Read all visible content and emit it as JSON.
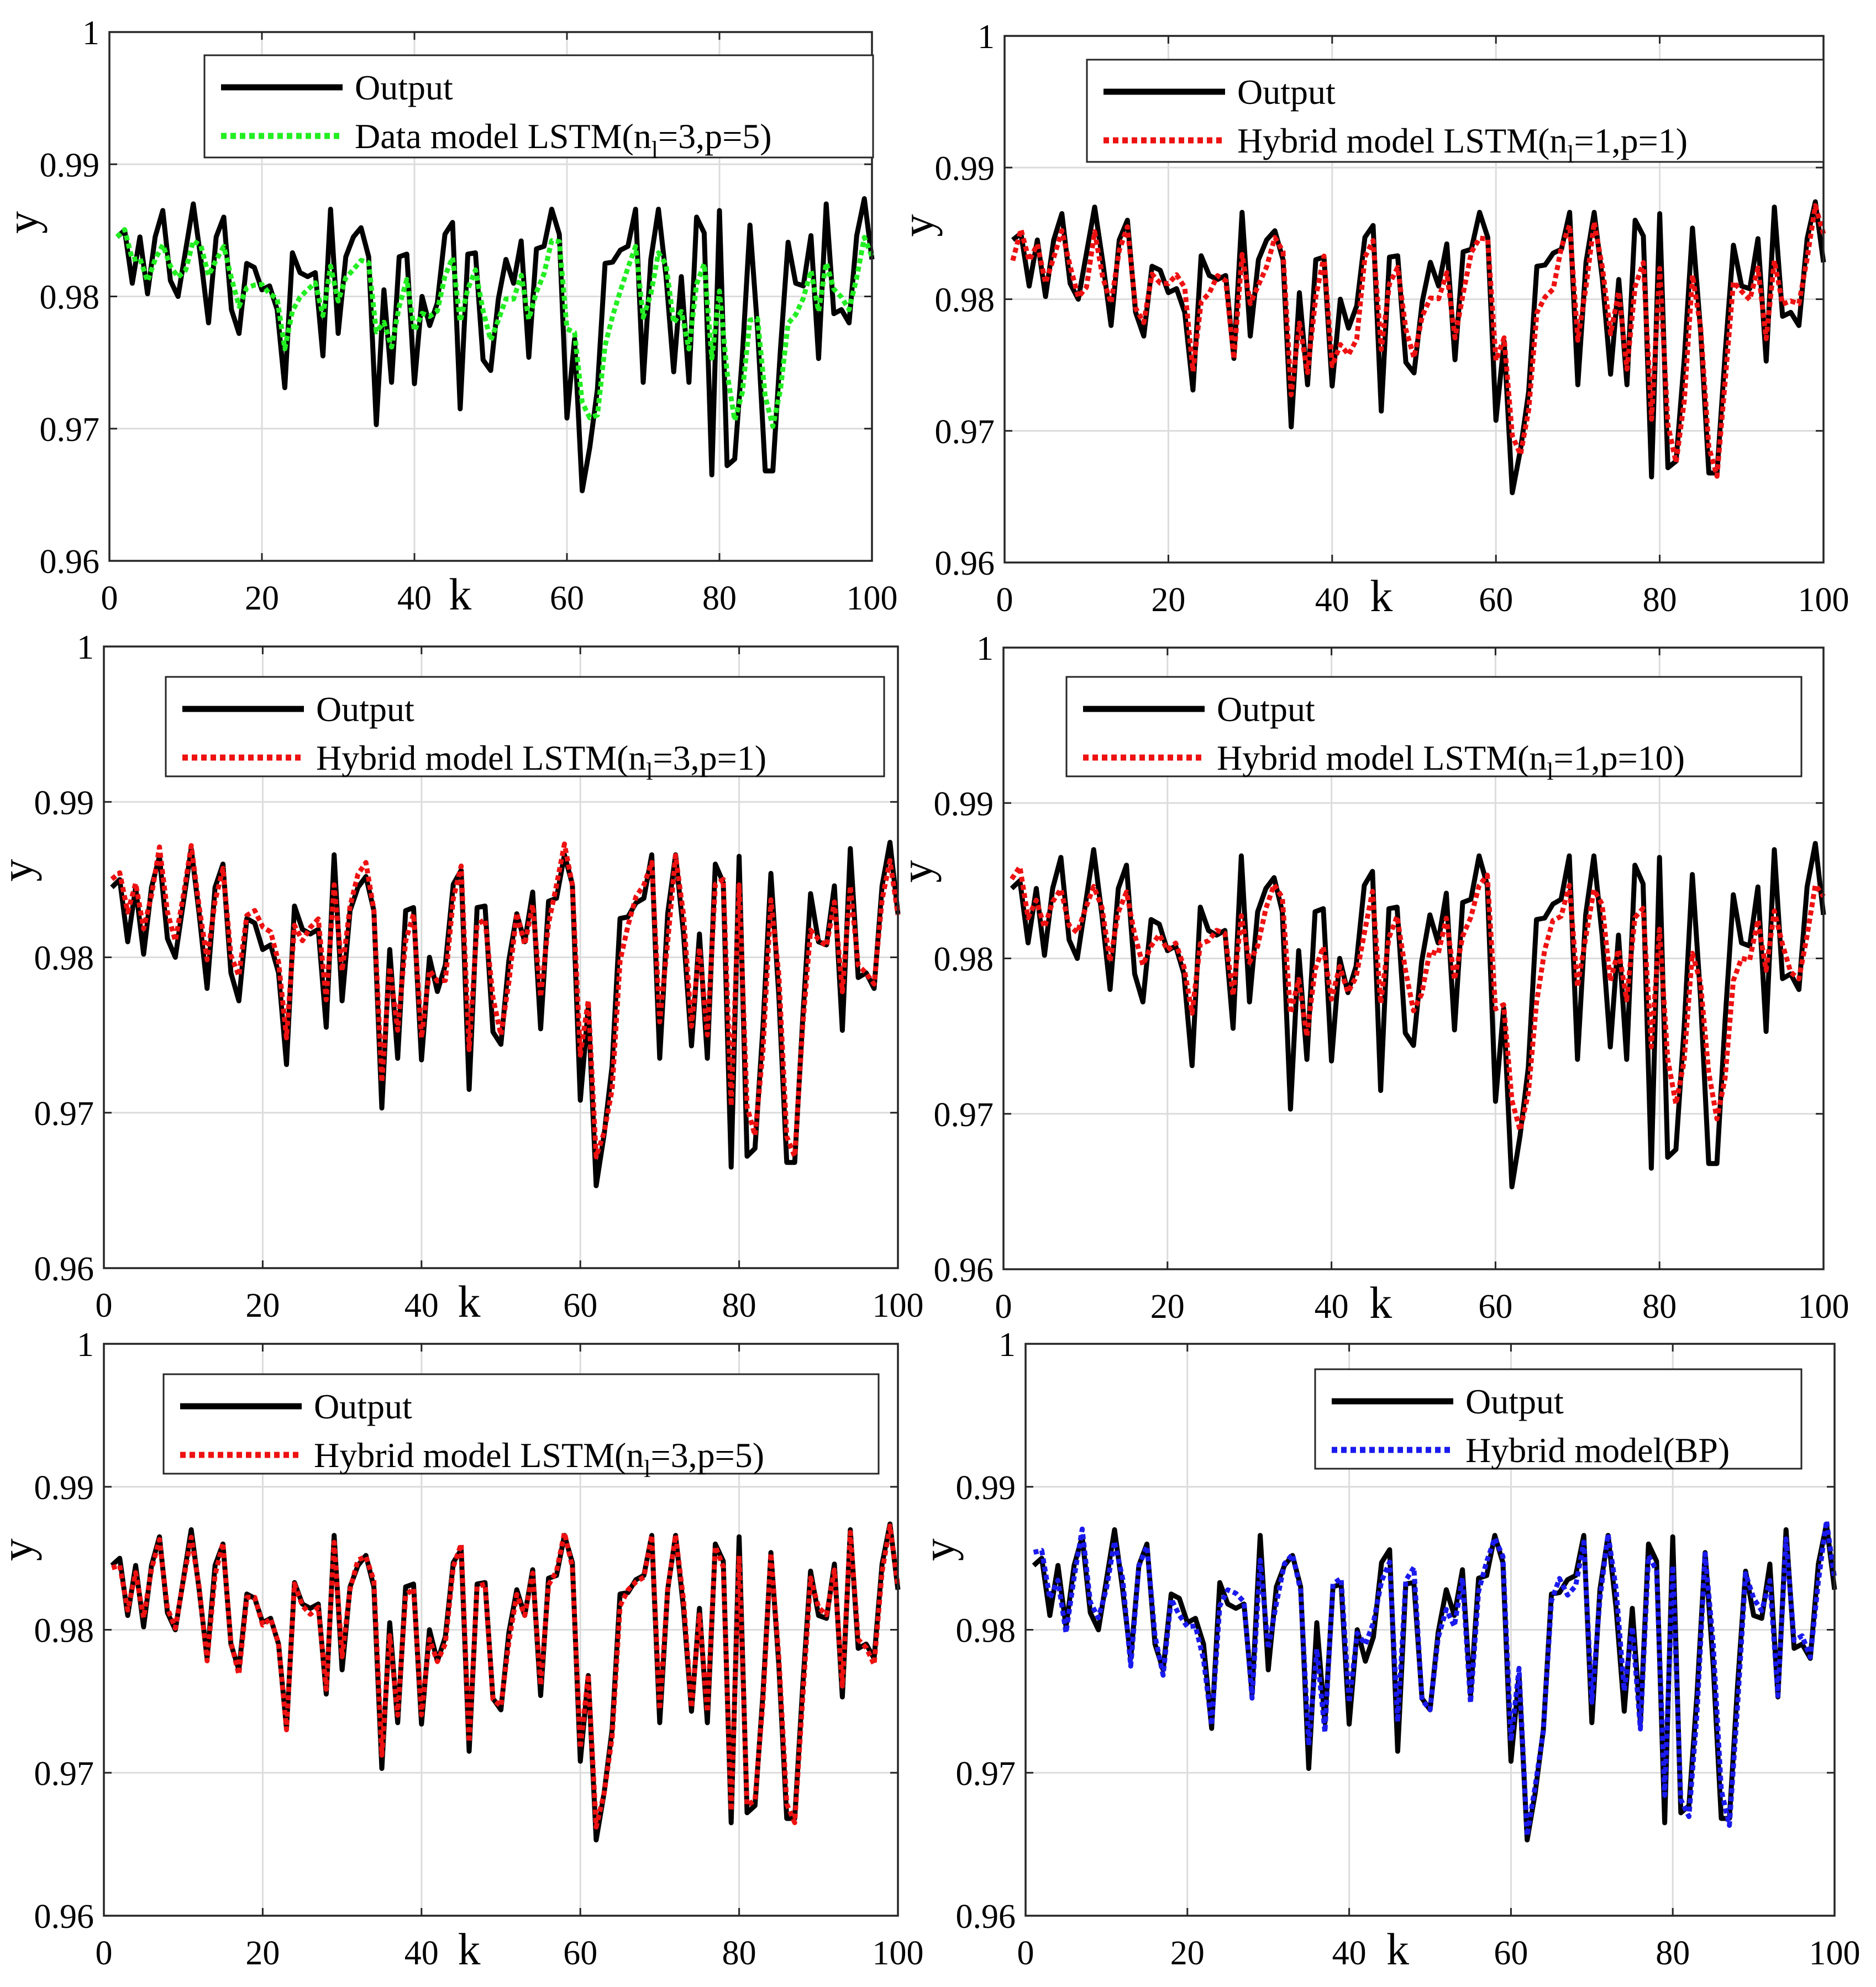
{
  "figure": {
    "series_colors": {
      "output": "#000000",
      "green": "#22ee22",
      "red": "#ee1111",
      "blue": "#1a1aee"
    },
    "grid_color": "#dcdcdc"
  },
  "chart_data": [
    {
      "type": "line",
      "xlabel": "k",
      "ylabel": "y",
      "xlim": [
        0,
        100
      ],
      "ylim": [
        0.96,
        1
      ],
      "xticks": [
        "0",
        "20",
        "40",
        "60",
        "80",
        "100"
      ],
      "yticks": [
        "0.96",
        "0.97",
        "0.98",
        "0.99",
        "1"
      ],
      "grid": true,
      "legend_location": "top-right",
      "series": [
        {
          "name": "Output",
          "color": "#000000",
          "style": "solid",
          "legend_label": "Output",
          "values_ref": "output"
        },
        {
          "name": "Data model LSTM(n_l=3,p=5)",
          "color": "#22ee22",
          "style": "dotted",
          "legend_label": "Data model LSTM(n",
          "legend_sub": "l",
          "legend_tail": "=3,p=5)",
          "noise_seed": 11,
          "noise_scale": 0.0014,
          "smooth": 0.55,
          "shift": -0.0004
        }
      ]
    },
    {
      "type": "line",
      "xlabel": "k",
      "ylabel": "y",
      "xlim": [
        0,
        100
      ],
      "ylim": [
        0.96,
        1
      ],
      "xticks": [
        "0",
        "20",
        "40",
        "60",
        "80",
        "100"
      ],
      "yticks": [
        "0.96",
        "0.97",
        "0.98",
        "0.99",
        "1"
      ],
      "grid": true,
      "legend_location": "top-right",
      "series": [
        {
          "name": "Output",
          "color": "#000000",
          "style": "solid",
          "legend_label": "Output",
          "values_ref": "output"
        },
        {
          "name": "Hybrid model LSTM(n_l=1,p=1)",
          "color": "#ee1111",
          "style": "dotted",
          "legend_label": "Hybrid model LSTM(n",
          "legend_sub": "l",
          "legend_tail": "=1,p=1)",
          "noise_seed": 23,
          "noise_scale": 0.0022,
          "smooth": 0.3,
          "shift": -0.0006
        }
      ]
    },
    {
      "type": "line",
      "xlabel": "k",
      "ylabel": "y",
      "xlim": [
        0,
        100
      ],
      "ylim": [
        0.96,
        1
      ],
      "xticks": [
        "0",
        "20",
        "40",
        "60",
        "80",
        "100"
      ],
      "yticks": [
        "0.96",
        "0.97",
        "0.98",
        "0.99",
        "1"
      ],
      "grid": true,
      "legend_location": "top-right",
      "series": [
        {
          "name": "Output",
          "color": "#000000",
          "style": "solid",
          "legend_label": "Output",
          "values_ref": "output"
        },
        {
          "name": "Hybrid model LSTM(n_l=3,p=1)",
          "color": "#ee1111",
          "style": "dotted",
          "legend_label": "Hybrid model LSTM(n",
          "legend_sub": "l",
          "legend_tail": "=3,p=1)",
          "noise_seed": 37,
          "noise_scale": 0.0012,
          "smooth": 0.18,
          "shift": 0.0002
        }
      ]
    },
    {
      "type": "line",
      "xlabel": "k",
      "ylabel": "y",
      "xlim": [
        0,
        100
      ],
      "ylim": [
        0.96,
        1
      ],
      "xticks": [
        "0",
        "20",
        "40",
        "60",
        "80",
        "100"
      ],
      "yticks": [
        "0.96",
        "0.97",
        "0.98",
        "0.99",
        "1"
      ],
      "grid": true,
      "legend_location": "top-right",
      "series": [
        {
          "name": "Output",
          "color": "#000000",
          "style": "solid",
          "legend_label": "Output",
          "values_ref": "output"
        },
        {
          "name": "Hybrid model LSTM(n_l=1,p=10)",
          "color": "#ee1111",
          "style": "dotted",
          "legend_label": "Hybrid model LSTM(n",
          "legend_sub": "l",
          "legend_tail": "=1,p=10)",
          "noise_seed": 41,
          "noise_scale": 0.0016,
          "smooth": 0.45,
          "shift": 0.0
        }
      ]
    },
    {
      "type": "line",
      "xlabel": "k",
      "ylabel": "y",
      "xlim": [
        0,
        100
      ],
      "ylim": [
        0.96,
        1
      ],
      "xticks": [
        "0",
        "20",
        "40",
        "60",
        "80",
        "100"
      ],
      "yticks": [
        "0.96",
        "0.97",
        "0.98",
        "0.99",
        "1"
      ],
      "grid": true,
      "legend_location": "top-right",
      "series": [
        {
          "name": "Output",
          "color": "#000000",
          "style": "solid",
          "legend_label": "Output",
          "values_ref": "output"
        },
        {
          "name": "Hybrid model LSTM(n_l=3,p=5)",
          "color": "#ee1111",
          "style": "dotted",
          "legend_label": "Hybrid model LSTM(n",
          "legend_sub": "l",
          "legend_tail": "=3,p=5)",
          "noise_seed": 53,
          "noise_scale": 0.0005,
          "smooth": 0.05,
          "shift": 0.0
        }
      ]
    },
    {
      "type": "line",
      "xlabel": "k",
      "ylabel": "y",
      "xlim": [
        0,
        100
      ],
      "ylim": [
        0.96,
        1
      ],
      "xticks": [
        "0",
        "20",
        "40",
        "60",
        "80",
        "100"
      ],
      "yticks": [
        "0.96",
        "0.97",
        "0.98",
        "0.99",
        "1"
      ],
      "grid": true,
      "legend_location": "top-right",
      "series": [
        {
          "name": "Output",
          "color": "#000000",
          "style": "solid",
          "legend_label": "Output",
          "values_ref": "output"
        },
        {
          "name": "Hybrid model(BP)",
          "color": "#1a1aee",
          "style": "dotted",
          "legend_label": "Hybrid model(BP)",
          "legend_sub": "",
          "legend_tail": "",
          "noise_seed": 67,
          "noise_scale": 0.0013,
          "smooth": 0.08,
          "shift": 0.0
        }
      ]
    }
  ],
  "output": {
    "x": [
      1,
      2,
      3,
      4,
      5,
      6,
      7,
      8,
      9,
      10,
      11,
      12,
      13,
      14,
      15,
      16,
      17,
      18,
      19,
      20,
      21,
      22,
      23,
      24,
      25,
      26,
      27,
      28,
      29,
      30,
      31,
      32,
      33,
      34,
      35,
      36,
      37,
      38,
      39,
      40,
      41,
      42,
      43,
      44,
      45,
      46,
      47,
      48,
      49,
      50,
      51,
      52,
      53,
      54,
      55,
      56,
      57,
      58,
      59,
      60,
      61,
      62,
      63,
      64,
      65,
      66,
      67,
      68,
      69,
      70,
      71,
      72,
      73,
      74,
      75,
      76,
      77,
      78,
      79,
      80,
      81,
      82,
      83,
      84,
      85,
      86,
      87,
      88,
      89,
      90,
      91,
      92,
      93,
      94,
      95,
      96,
      97,
      98,
      99,
      100
    ],
    "values": [
      0.9845,
      0.985,
      0.981,
      0.9845,
      0.9802,
      0.9845,
      0.9865,
      0.9812,
      0.98,
      0.9835,
      0.987,
      0.9828,
      0.978,
      0.9845,
      0.986,
      0.979,
      0.9772,
      0.9825,
      0.9822,
      0.9805,
      0.9808,
      0.979,
      0.9731,
      0.9833,
      0.9818,
      0.9815,
      0.9818,
      0.9755,
      0.9866,
      0.9772,
      0.983,
      0.9845,
      0.9852,
      0.983,
      0.9703,
      0.9805,
      0.9735,
      0.983,
      0.9832,
      0.9734,
      0.98,
      0.9778,
      0.9795,
      0.9847,
      0.9856,
      0.9715,
      0.9832,
      0.9833,
      0.9752,
      0.9744,
      0.9798,
      0.9828,
      0.981,
      0.9842,
      0.9754,
      0.9836,
      0.9838,
      0.9866,
      0.9847,
      0.9708,
      0.9768,
      0.9653,
      0.9686,
      0.973,
      0.9825,
      0.9826,
      0.9835,
      0.9838,
      0.9866,
      0.9735,
      0.9828,
      0.9866,
      0.9815,
      0.9743,
      0.9815,
      0.9735,
      0.986,
      0.9848,
      0.9665,
      0.9865,
      0.9672,
      0.9677,
      0.9755,
      0.9854,
      0.9775,
      0.9668,
      0.9668,
      0.976,
      0.9841,
      0.981,
      0.9808,
      0.9846,
      0.9753,
      0.987,
      0.9787,
      0.979,
      0.978,
      0.9846,
      0.9874,
      0.9828
    ]
  }
}
